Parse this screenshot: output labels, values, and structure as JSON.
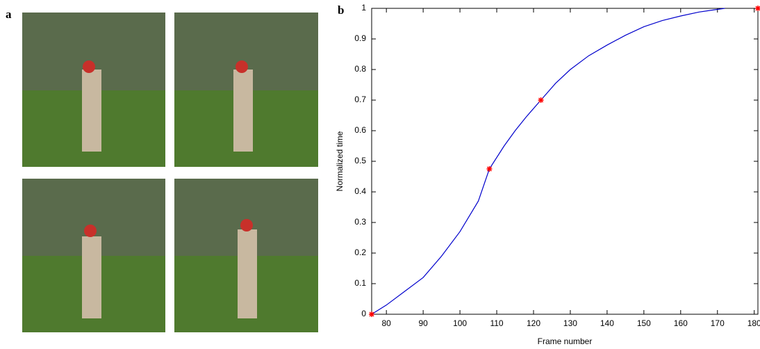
{
  "panel_a_label": "a",
  "chart_data": {
    "type": "line",
    "panel_label": "b",
    "x_label": "Frame number",
    "y_label": "Normalized time",
    "xlim": [
      76,
      181
    ],
    "ylim": [
      0,
      1
    ],
    "xticks": [
      80,
      90,
      100,
      110,
      120,
      130,
      140,
      150,
      160,
      170,
      180
    ],
    "yticks": [
      0,
      0.1,
      0.2,
      0.3,
      0.4,
      0.5,
      0.6,
      0.7,
      0.8,
      0.9,
      1
    ],
    "series": [
      {
        "color": "#0000cc",
        "kind": "line",
        "x": [
          76,
          80,
          85,
          90,
          95,
          100,
          105,
          108,
          112,
          115,
          118,
          122,
          126,
          130,
          135,
          140,
          145,
          150,
          155,
          160,
          165,
          172
        ],
        "values": [
          0,
          0.03,
          0.075,
          0.12,
          0.19,
          0.27,
          0.37,
          0.475,
          0.55,
          0.6,
          0.645,
          0.7,
          0.755,
          0.8,
          0.845,
          0.88,
          0.912,
          0.94,
          0.96,
          0.975,
          0.988,
          1.0
        ]
      },
      {
        "color": "#ff0000",
        "kind": "markers",
        "x": [
          76,
          108,
          122,
          181
        ],
        "values": [
          0,
          0.475,
          0.7,
          1
        ]
      }
    ]
  }
}
